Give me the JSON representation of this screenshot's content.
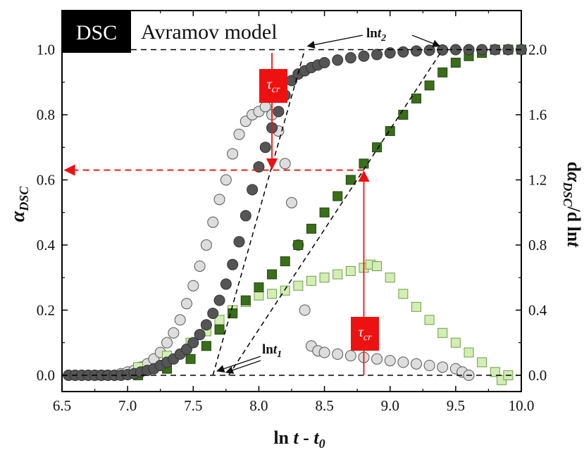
{
  "chart_data": {
    "type": "scatter",
    "badge": "DSC",
    "title": "Avramov model",
    "xlabel": "ln t - t0",
    "xlabel_parts": [
      "ln ",
      "t",
      " - ",
      "t",
      "0"
    ],
    "ylabel_left": "αDSC",
    "ylabel_left_parts": [
      "α",
      "DSC"
    ],
    "ylabel_right": "dαDSC/d lnt",
    "ylabel_right_parts": [
      "d",
      "α",
      "DSC",
      "/d ln",
      "t"
    ],
    "xlim": [
      6.5,
      10.0
    ],
    "ylim_left": [
      -0.05,
      1.12
    ],
    "ylim_right": [
      -0.1,
      2.24
    ],
    "x_ticks": [
      "6.5",
      "7.0",
      "7.5",
      "8.0",
      "8.5",
      "9.0",
      "9.5",
      "10.0"
    ],
    "y_ticks_left": [
      "0.0",
      "0.2",
      "0.4",
      "0.6",
      "0.8",
      "1.0"
    ],
    "y_ticks_right": [
      "0.0",
      "0.4",
      "0.8",
      "1.2",
      "1.6",
      "2.0"
    ],
    "colors": {
      "dark_circle": "#555555",
      "light_circle": "#dddddd",
      "dark_square": "#3a6e1a",
      "light_square": "#d4edb4",
      "red": "#ee1111",
      "badge_bg": "#000000"
    },
    "series": [
      {
        "axis": "left",
        "marker": "circle-dark",
        "x": [
          6.55,
          6.6,
          6.65,
          6.7,
          6.75,
          6.8,
          6.85,
          6.9,
          6.95,
          7.0,
          7.05,
          7.1,
          7.15,
          7.2,
          7.25,
          7.3,
          7.35,
          7.4,
          7.45,
          7.5,
          7.55,
          7.6,
          7.65,
          7.7,
          7.75,
          7.8,
          7.85,
          7.9,
          7.95,
          8.0,
          8.05,
          8.1,
          8.15,
          8.2,
          8.25,
          8.3,
          8.35,
          8.4,
          8.45,
          8.5,
          8.6,
          8.7,
          8.8,
          8.9,
          9.0,
          9.1,
          9.2,
          9.3,
          9.4,
          9.5,
          9.6,
          9.7,
          9.8,
          9.9,
          10.0
        ],
        "y": [
          0.0,
          0.0,
          0.0,
          0.0,
          0.0,
          0.0,
          0.0,
          0.0,
          0.0,
          0.002,
          0.005,
          0.01,
          0.015,
          0.02,
          0.03,
          0.04,
          0.05,
          0.065,
          0.08,
          0.1,
          0.125,
          0.155,
          0.19,
          0.23,
          0.28,
          0.34,
          0.41,
          0.49,
          0.57,
          0.64,
          0.7,
          0.76,
          0.81,
          0.86,
          0.905,
          0.925,
          0.935,
          0.945,
          0.953,
          0.96,
          0.968,
          0.975,
          0.98,
          0.985,
          0.99,
          0.993,
          0.996,
          0.998,
          0.999,
          1.0,
          1.0,
          1.0,
          1.0,
          1.0,
          1.0
        ]
      },
      {
        "axis": "right",
        "marker": "circle-light",
        "x": [
          6.55,
          6.6,
          6.65,
          6.7,
          6.75,
          6.8,
          6.85,
          6.9,
          6.95,
          7.0,
          7.05,
          7.1,
          7.15,
          7.2,
          7.25,
          7.3,
          7.35,
          7.4,
          7.45,
          7.5,
          7.55,
          7.6,
          7.65,
          7.7,
          7.75,
          7.8,
          7.85,
          7.9,
          7.95,
          8.0,
          8.05,
          8.1,
          8.15,
          8.2,
          8.25,
          8.3,
          8.35,
          8.4,
          8.45,
          8.5,
          8.6,
          8.7,
          8.8,
          8.9,
          9.0,
          9.1,
          9.2,
          9.3,
          9.4,
          9.5,
          9.55,
          9.6
        ],
        "y": [
          0.0,
          0.0,
          0.0,
          0.0,
          0.0,
          0.0,
          0.0,
          0.0,
          0.01,
          0.02,
          0.03,
          0.05,
          0.07,
          0.1,
          0.14,
          0.2,
          0.26,
          0.34,
          0.44,
          0.55,
          0.67,
          0.8,
          0.94,
          1.08,
          1.2,
          1.36,
          1.48,
          1.56,
          1.6,
          1.62,
          1.65,
          1.6,
          1.5,
          1.3,
          1.06,
          0.8,
          0.4,
          0.18,
          0.15,
          0.14,
          0.13,
          0.12,
          0.11,
          0.1,
          0.09,
          0.08,
          0.07,
          0.06,
          0.05,
          0.04,
          0.02,
          0.0
        ]
      },
      {
        "axis": "left",
        "marker": "square-dark",
        "x": [
          6.8,
          7.08,
          7.3,
          7.48,
          7.6,
          7.7,
          7.8,
          7.9,
          8.0,
          8.1,
          8.2,
          8.3,
          8.4,
          8.5,
          8.6,
          8.7,
          8.8,
          8.9,
          9.0,
          9.1,
          9.2,
          9.3,
          9.4,
          9.5,
          9.6,
          9.7,
          9.8,
          9.9,
          10.0
        ],
        "y": [
          0.0,
          0.0,
          0.02,
          0.05,
          0.09,
          0.14,
          0.19,
          0.23,
          0.27,
          0.31,
          0.35,
          0.4,
          0.45,
          0.5,
          0.55,
          0.6,
          0.65,
          0.7,
          0.75,
          0.8,
          0.85,
          0.89,
          0.93,
          0.96,
          0.98,
          0.99,
          1.0,
          1.0,
          1.0
        ]
      },
      {
        "axis": "right",
        "marker": "square-light",
        "x": [
          6.8,
          7.08,
          7.3,
          7.48,
          7.6,
          7.7,
          7.8,
          7.9,
          8.0,
          8.1,
          8.2,
          8.3,
          8.4,
          8.5,
          8.6,
          8.7,
          8.8,
          8.85,
          8.9,
          9.0,
          9.1,
          9.2,
          9.3,
          9.4,
          9.5,
          9.6,
          9.7,
          9.8,
          9.85,
          9.9
        ],
        "y": [
          0.0,
          0.05,
          0.12,
          0.2,
          0.27,
          0.34,
          0.4,
          0.45,
          0.49,
          0.5,
          0.52,
          0.55,
          0.58,
          0.6,
          0.62,
          0.64,
          0.66,
          0.68,
          0.67,
          0.6,
          0.5,
          0.42,
          0.34,
          0.26,
          0.2,
          0.14,
          0.08,
          0.02,
          -0.03,
          0.0
        ]
      }
    ],
    "annotations": {
      "tau_label": "τcr",
      "tau_parts": [
        "τ",
        "cr"
      ],
      "lnt1_parts": [
        "ln",
        "t",
        "1"
      ],
      "lnt2_parts": [
        "ln",
        "t",
        "2"
      ],
      "dsc_tau_x": 8.1,
      "xrd_tau_x": 8.8,
      "red_level": 0.63,
      "lnt1_x": 7.65,
      "lnt2_x": 8.35,
      "lnt2b_x": 9.4
    }
  }
}
